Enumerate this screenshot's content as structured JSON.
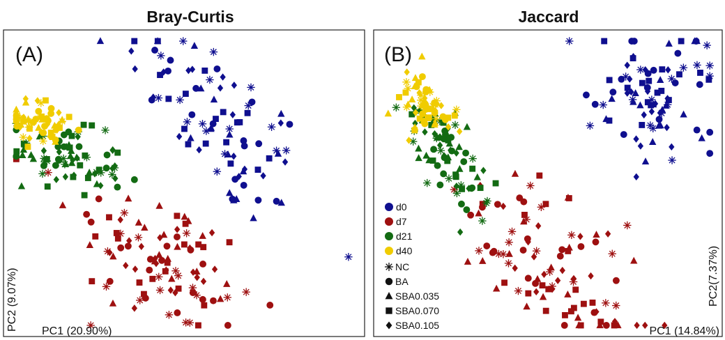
{
  "colors": {
    "d0": "#0f0f8f",
    "d7": "#9e1010",
    "d21": "#136b13",
    "d40": "#f0cc00"
  },
  "legend": {
    "days": [
      {
        "label": "d0",
        "color_key": "d0"
      },
      {
        "label": "d7",
        "color_key": "d7"
      },
      {
        "label": "d21",
        "color_key": "d21"
      },
      {
        "label": "d40",
        "color_key": "d40"
      }
    ],
    "treatments": [
      {
        "label": "NC",
        "shape": "asterisk"
      },
      {
        "label": "BA",
        "shape": "circle"
      },
      {
        "label": "SBA0.035",
        "shape": "triangle"
      },
      {
        "label": "SBA0.070",
        "shape": "square"
      },
      {
        "label": "SBA0.105",
        "shape": "diamond"
      }
    ]
  },
  "chart_data": [
    {
      "type": "scatter",
      "title": "Bray-Curtis",
      "panel_label": "(A)",
      "xlabel": "PC1 (20.90%)",
      "ylabel": "PC2 (9.07%)",
      "groups": [
        {
          "day": "d0",
          "centroid": [
            0.6,
            0.7
          ],
          "spread": [
            0.13,
            0.18
          ],
          "corr": -0.7,
          "count": 90
        },
        {
          "day": "d7",
          "centroid": [
            0.44,
            0.24
          ],
          "spread": [
            0.13,
            0.14
          ],
          "corr": -0.5,
          "count": 100
        },
        {
          "day": "d21",
          "centroid": [
            0.17,
            0.58
          ],
          "spread": [
            0.08,
            0.06
          ],
          "corr": -0.4,
          "count": 80
        },
        {
          "day": "d40",
          "centroid": [
            0.1,
            0.7
          ],
          "spread": [
            0.05,
            0.04
          ],
          "corr": -0.3,
          "count": 60
        }
      ]
    },
    {
      "type": "scatter",
      "title": "Jaccard",
      "panel_label": "(B)",
      "xlabel": "PC1 (14.84%)",
      "ylabel": "PC2(7.37%)",
      "groups": [
        {
          "day": "d0",
          "centroid": [
            0.8,
            0.78
          ],
          "spread": [
            0.09,
            0.1
          ],
          "corr": 0.0,
          "count": 90
        },
        {
          "day": "d7",
          "centroid": [
            0.5,
            0.22
          ],
          "spread": [
            0.12,
            0.14
          ],
          "corr": -0.5,
          "count": 100
        },
        {
          "day": "d21",
          "centroid": [
            0.21,
            0.6
          ],
          "spread": [
            0.06,
            0.1
          ],
          "corr": -0.6,
          "count": 80
        },
        {
          "day": "d40",
          "centroid": [
            0.14,
            0.76
          ],
          "spread": [
            0.04,
            0.06
          ],
          "corr": -0.4,
          "count": 60
        }
      ]
    }
  ]
}
